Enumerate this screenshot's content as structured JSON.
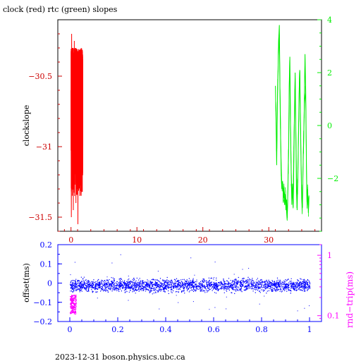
{
  "title": "clock (red) rtc (green) slopes",
  "footer": "2023-12-31 boson.physics.ubc.ca",
  "colors": {
    "red": "#ff0000",
    "green": "#00ee00",
    "blue": "#0000ff",
    "magenta": "#ff00ff",
    "black": "#000000",
    "darkred": "#cc0000"
  },
  "chart_data": [
    {
      "type": "line",
      "ylabel": "clockslope",
      "y2label": "",
      "xlim": [
        -2,
        38
      ],
      "ylim": [
        -31.6,
        -30.1
      ],
      "y2lim": [
        -4,
        4
      ],
      "xticks": [
        0,
        10,
        20,
        30
      ],
      "yticks": [
        -30.5,
        -31,
        -31.5
      ],
      "ytick_labels": [
        "−30.5",
        "−31",
        "−31.5"
      ],
      "y2ticks": [
        4,
        2,
        0,
        -2
      ],
      "y2tick_labels": [
        "4",
        "2",
        "0",
        "−2"
      ],
      "series": [
        {
          "color": "red",
          "axis": "left",
          "x": [
            0.0,
            0.05,
            0.1,
            0.15,
            0.2,
            0.25,
            0.3,
            0.35,
            0.4,
            0.45,
            0.5,
            0.55,
            0.6,
            0.65,
            0.7,
            0.75,
            0.8,
            0.85,
            0.9,
            0.95,
            1.0,
            1.05,
            1.1,
            1.15,
            1.2,
            1.25,
            1.3,
            1.35,
            1.4,
            1.45,
            1.5,
            1.55,
            1.6,
            1.65,
            1.7,
            1.75,
            1.8
          ],
          "y": [
            -30.6,
            -31.5,
            -30.2,
            -31.2,
            -30.4,
            -31.3,
            -30.3,
            -31.45,
            -30.5,
            -31.2,
            -30.25,
            -31.35,
            -30.45,
            -31.1,
            -30.3,
            -31.4,
            -30.6,
            -31.05,
            -30.35,
            -31.3,
            -30.5,
            -31.55,
            -30.4,
            -31.2,
            -30.35,
            -31.0,
            -30.55,
            -31.35,
            -30.45,
            -31.1,
            -30.6,
            -31.25,
            -30.5,
            -31.3,
            -30.7,
            -31.2,
            -30.8
          ]
        },
        {
          "color": "green",
          "axis": "right",
          "x": [
            31.0,
            31.1,
            31.2,
            31.3,
            31.4,
            31.5,
            31.6,
            31.7,
            31.8,
            31.9,
            32.0,
            32.1,
            32.2,
            32.3,
            32.4,
            32.5,
            32.6,
            32.7,
            32.8,
            32.9,
            33.0,
            33.1,
            33.2,
            33.3,
            33.4,
            33.5,
            33.6,
            33.7,
            33.8,
            33.9,
            34.0,
            34.1,
            34.2,
            34.3,
            34.4,
            34.5,
            34.6,
            34.7,
            34.8,
            34.9,
            35.0,
            35.1,
            35.2,
            35.3,
            35.4,
            35.5,
            35.6,
            35.7,
            35.8,
            35.9,
            36.0,
            36.1
          ],
          "y": [
            1.5,
            0.2,
            -1.5,
            0.8,
            2.0,
            3.2,
            3.8,
            1.2,
            -0.5,
            -2.0,
            -2.4,
            -2.1,
            -2.7,
            -2.3,
            -3.0,
            -2.6,
            -3.2,
            -2.8,
            -3.5,
            -2.4,
            -1.0,
            1.5,
            2.6,
            -0.2,
            -1.8,
            -3.0,
            -2.2,
            -3.1,
            -1.0,
            0.5,
            2.0,
            0.0,
            -2.5,
            -3.2,
            -2.0,
            -0.5,
            1.2,
            2.1,
            0.4,
            -1.5,
            -2.8,
            -3.1,
            -1.6,
            -0.4,
            0.8,
            2.7,
            1.3,
            -1.2,
            -2.9,
            -2.4,
            -3.3,
            -2.7
          ]
        }
      ]
    },
    {
      "type": "scatter",
      "ylabel": "offset(ms)",
      "y2label": "rnd−trip(ms)",
      "xlim": [
        -0.05,
        1.05
      ],
      "ylim": [
        -0.2,
        0.2
      ],
      "y2lim_log": [
        0.08,
        1.5
      ],
      "xticks": [
        0,
        0.2,
        0.4,
        0.6,
        0.8,
        1
      ],
      "xtick_labels": [
        "0",
        "0.2",
        "0.4",
        "0.6",
        "0.8",
        "1"
      ],
      "yticks": [
        0.2,
        0.1,
        0,
        -0.1,
        -0.2
      ],
      "ytick_labels": [
        "0.2",
        "0.1",
        "0",
        "−0.1",
        "−0.2"
      ],
      "y2ticks": [
        1,
        0.1
      ],
      "y2tick_labels": [
        "1",
        "0.1"
      ],
      "series": [
        {
          "color": "blue",
          "axis": "left",
          "description": "offset band",
          "x_range": [
            0,
            1
          ],
          "y_center": -0.01,
          "y_spread": 0.035
        },
        {
          "color": "magenta",
          "axis": "right",
          "description": "round-trip cluster",
          "x_range": [
            0,
            0.025
          ],
          "y_range": [
            -0.06,
            -0.16
          ]
        }
      ]
    }
  ]
}
